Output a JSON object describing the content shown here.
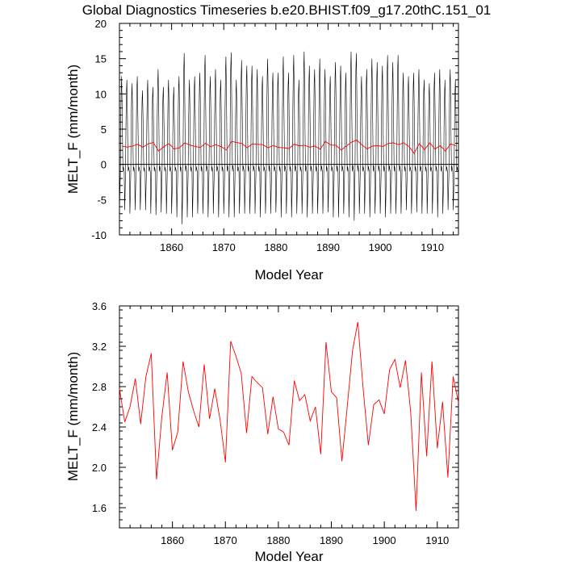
{
  "chart_data": [
    {
      "type": "line",
      "title": "Global Diagnostics Timeseries b.e20.BHIST.f09_g17.20thC.151_01",
      "xlabel": "Model Year",
      "ylabel": "MELT_F (mm/month)",
      "xlim": [
        1850,
        1915
      ],
      "ylim": [
        -10,
        20
      ],
      "x_ticks": [
        1860,
        1870,
        1880,
        1890,
        1900,
        1910
      ],
      "y_ticks": [
        -10,
        -5,
        0,
        5,
        10,
        15,
        20
      ],
      "zero_line": true,
      "series": [
        {
          "color": "#000000",
          "monthly_peaks": [
            12.5,
            12.0,
            11.5,
            12.5,
            10.5,
            12.0,
            11.0,
            13.5,
            11.0,
            12.0,
            11.0,
            12.5,
            15.8,
            12.0,
            12.5,
            13.0,
            15.5,
            12.5,
            13.5,
            12.0,
            15.3,
            15.9,
            12.0,
            14.8,
            14.0,
            14.0,
            13.5,
            12.5,
            15.0,
            13.0,
            13.0,
            15.3,
            13.0,
            15.5,
            12.0,
            16.0,
            14.0,
            13.5,
            15.0,
            13.5,
            12.5,
            14.5,
            14.0,
            13.0,
            16.0,
            15.8,
            12.5,
            13.5,
            15.0,
            14.5,
            14.0,
            15.5,
            14.5,
            15.5,
            13.0,
            12.5,
            13.0,
            13.5,
            12.0,
            11.5,
            13.0,
            13.5,
            12.0,
            13.5,
            12.0
          ],
          "monthly_troughs": [
            -6.8,
            -6.5,
            -7.0,
            -6.5,
            -6.5,
            -6.5,
            -7.0,
            -7.2,
            -6.8,
            -7.0,
            -7.0,
            -7.5,
            -8.5,
            -7.5,
            -7.5,
            -7.0,
            -7.0,
            -7.5,
            -7.0,
            -7.5,
            -7.0,
            -7.5,
            -7.5,
            -7.0,
            -7.0,
            -7.0,
            -7.0,
            -7.5,
            -7.0,
            -7.0,
            -6.8,
            -7.5,
            -7.0,
            -7.5,
            -7.0,
            -7.0,
            -7.5,
            -7.0,
            -7.0,
            -7.0,
            -6.8,
            -7.5,
            -7.5,
            -7.0,
            -7.5,
            -8.0,
            -7.0,
            -7.0,
            -7.5,
            -7.0,
            -7.0,
            -7.5,
            -7.0,
            -7.0,
            -7.0,
            -6.5,
            -7.0,
            -6.8,
            -7.0,
            -7.0,
            -7.0,
            -7.5,
            -7.0,
            -6.5,
            -6.5
          ]
        },
        {
          "color": "#ff0000",
          "x": [
            1850,
            1851,
            1852,
            1853,
            1854,
            1855,
            1856,
            1857,
            1858,
            1859,
            1860,
            1861,
            1862,
            1863,
            1864,
            1865,
            1866,
            1867,
            1868,
            1869,
            1870,
            1871,
            1872,
            1873,
            1874,
            1875,
            1876,
            1877,
            1878,
            1879,
            1880,
            1881,
            1882,
            1883,
            1884,
            1885,
            1886,
            1887,
            1888,
            1889,
            1890,
            1891,
            1892,
            1893,
            1894,
            1895,
            1896,
            1897,
            1898,
            1899,
            1900,
            1901,
            1902,
            1903,
            1904,
            1905,
            1906,
            1907,
            1908,
            1909,
            1910,
            1911,
            1912,
            1913,
            1914
          ],
          "values": [
            2.6,
            2.45,
            2.6,
            2.85,
            2.45,
            2.9,
            3.1,
            1.88,
            2.5,
            2.95,
            2.18,
            2.35,
            3.05,
            2.75,
            2.55,
            2.4,
            3.0,
            2.5,
            2.8,
            2.5,
            2.05,
            3.25,
            3.1,
            2.95,
            2.35,
            2.9,
            2.85,
            2.8,
            2.35,
            2.7,
            2.4,
            2.35,
            2.25,
            2.85,
            2.65,
            2.7,
            2.45,
            2.6,
            2.15,
            3.25,
            2.75,
            2.7,
            2.05,
            2.6,
            3.15,
            3.45,
            2.75,
            2.2,
            2.6,
            2.65,
            2.55,
            2.95,
            3.05,
            2.8,
            3.05,
            2.55,
            1.58,
            2.95,
            2.1,
            3.05,
            2.2,
            2.65,
            1.9,
            2.9,
            2.65
          ]
        }
      ]
    },
    {
      "type": "line",
      "xlabel": "Model Year",
      "ylabel": "MELT_F (mm/month)",
      "xlim": [
        1850,
        1914
      ],
      "ylim": [
        1.4,
        3.6
      ],
      "x_ticks": [
        1860,
        1870,
        1880,
        1890,
        1900,
        1910
      ],
      "y_ticks": [
        1.6,
        2.0,
        2.4,
        2.8,
        3.2,
        3.6
      ],
      "y_tick_labels": [
        "1.6",
        "2.0",
        "2.4",
        "2.8",
        "3.2",
        "3.6"
      ],
      "series": [
        {
          "color": "#ff0000",
          "x": [
            1850,
            1851,
            1852,
            1853,
            1854,
            1855,
            1856,
            1857,
            1858,
            1859,
            1860,
            1861,
            1862,
            1863,
            1864,
            1865,
            1866,
            1867,
            1868,
            1869,
            1870,
            1871,
            1872,
            1873,
            1874,
            1875,
            1876,
            1877,
            1878,
            1879,
            1880,
            1881,
            1882,
            1883,
            1884,
            1885,
            1886,
            1887,
            1888,
            1889,
            1890,
            1891,
            1892,
            1893,
            1894,
            1895,
            1896,
            1897,
            1898,
            1899,
            1900,
            1901,
            1902,
            1903,
            1904,
            1905,
            1906,
            1907,
            1908,
            1909,
            1910,
            1911,
            1912,
            1913,
            1914
          ],
          "values": [
            2.78,
            2.45,
            2.6,
            2.88,
            2.43,
            2.9,
            3.13,
            1.88,
            2.5,
            2.94,
            2.17,
            2.35,
            3.05,
            2.75,
            2.56,
            2.4,
            3.02,
            2.48,
            2.78,
            2.47,
            2.05,
            3.25,
            3.1,
            2.93,
            2.34,
            2.9,
            2.84,
            2.79,
            2.33,
            2.7,
            2.38,
            2.35,
            2.22,
            2.86,
            2.66,
            2.72,
            2.46,
            2.6,
            2.13,
            3.24,
            2.75,
            2.69,
            2.06,
            2.6,
            3.16,
            3.44,
            2.78,
            2.22,
            2.62,
            2.67,
            2.53,
            2.97,
            3.07,
            2.79,
            3.06,
            2.54,
            1.57,
            2.94,
            2.11,
            3.05,
            2.19,
            2.65,
            1.9,
            2.9,
            2.64
          ]
        }
      ]
    }
  ]
}
